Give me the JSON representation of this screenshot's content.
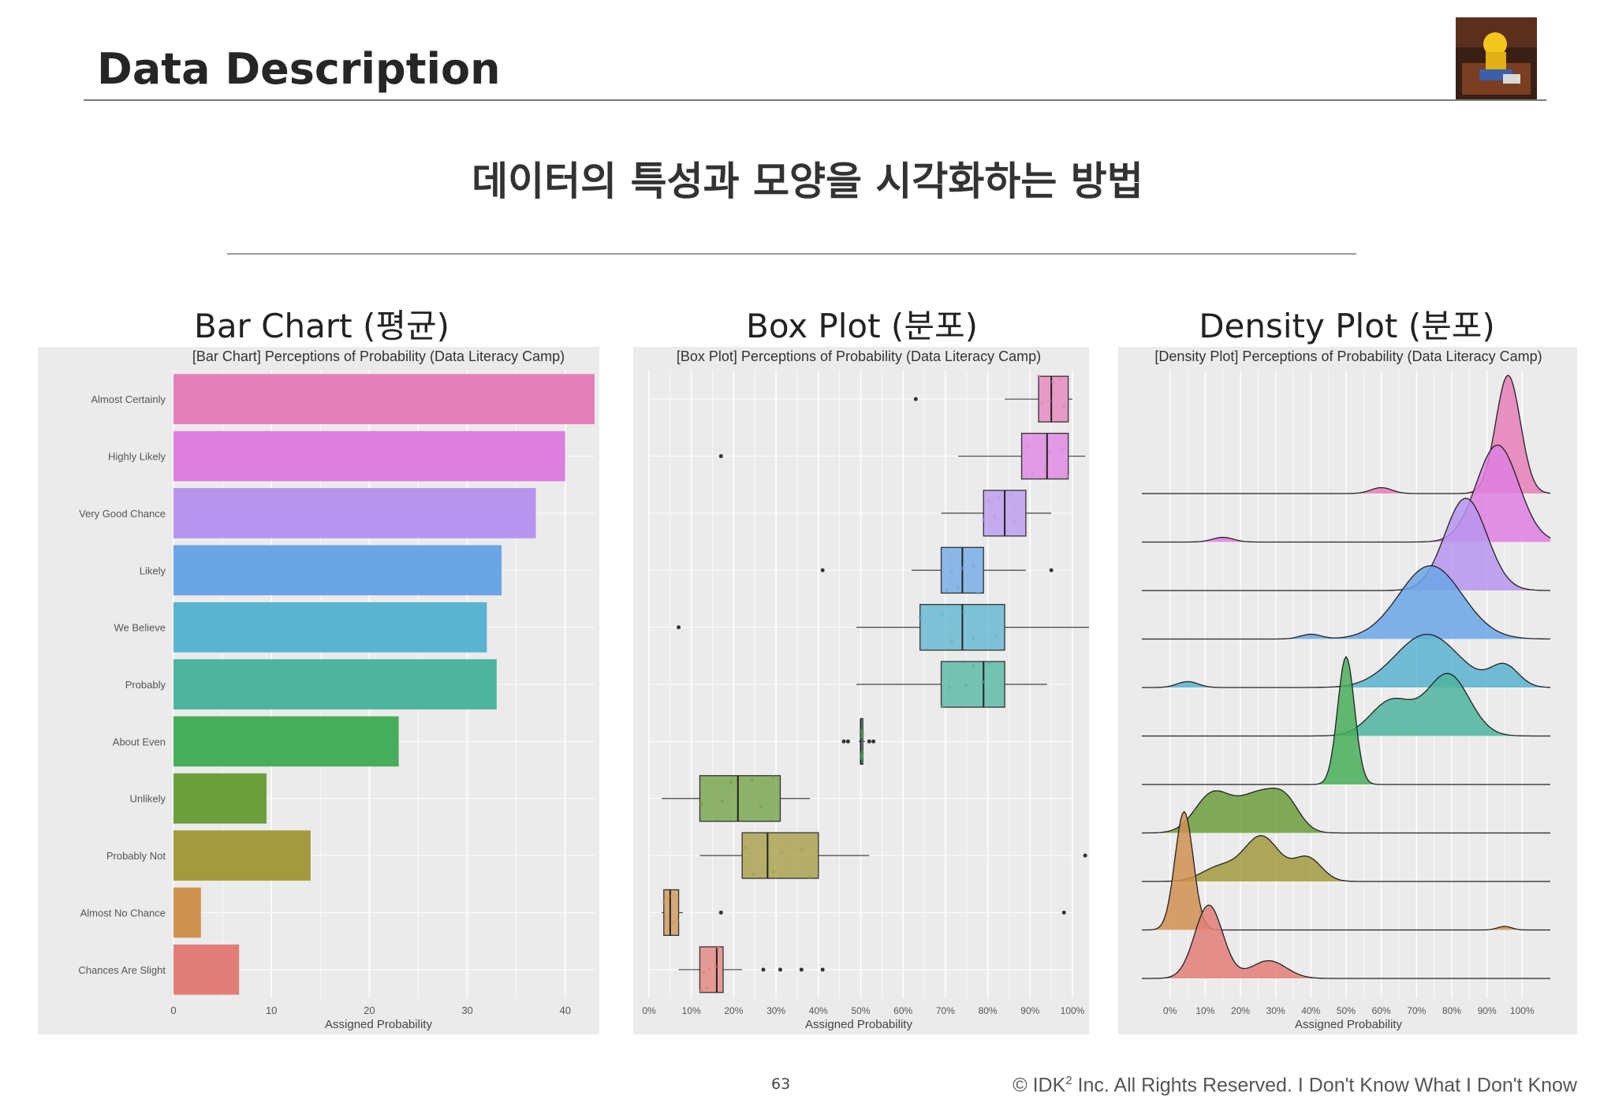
{
  "header": {
    "title": "Data Description"
  },
  "subtitle": "데이터의 특성과 모양을 시각화하는 방법",
  "panels": [
    {
      "label": "Bar Chart (평균)"
    },
    {
      "label": "Box Plot (분포)"
    },
    {
      "label": "Density Plot (분포)"
    }
  ],
  "footer": {
    "page": "63",
    "copyright_prefix": "© IDK",
    "copyright_sup": "2",
    "copyright_suffix": " Inc. All Rights Reserved.  I Don't Know What I Don't Know"
  },
  "colors": {
    "categories": [
      "#e57fb8",
      "#de7fe0",
      "#b795ef",
      "#6aa6e6",
      "#5ab3cf",
      "#4eb49e",
      "#46ae5b",
      "#6c9e3c",
      "#a29a3e",
      "#cf9150",
      "#e27e78"
    ],
    "panel_bg": "#ebebeb"
  },
  "chart_data": [
    {
      "type": "bar",
      "orientation": "horizontal",
      "title": "[Bar Chart] Perceptions of Probability (Data Literacy Camp)",
      "xlabel": "Assigned Probability",
      "ylabel": "",
      "xlim": [
        0,
        43
      ],
      "xticks": [
        "0",
        "10",
        "20",
        "30",
        "40"
      ],
      "categories": [
        "Almost Certainly",
        "Highly Likely",
        "Very Good Chance",
        "Likely",
        "We Believe",
        "Probably",
        "About Even",
        "Unlikely",
        "Probably Not",
        "Almost No Chance",
        "Chances Are Slight"
      ],
      "values": [
        43,
        40,
        37,
        33.5,
        32,
        33,
        23,
        9.5,
        14,
        2.8,
        6.7
      ]
    },
    {
      "type": "box",
      "title": "[Box Plot] Perceptions of Probability (Data Literacy Camp)",
      "xlabel": "Assigned Probability",
      "xlim": [
        0,
        100
      ],
      "xticks": [
        "0%",
        "10%",
        "20%",
        "30%",
        "40%",
        "50%",
        "60%",
        "70%",
        "80%",
        "90%",
        "100%"
      ],
      "categories": [
        "Almost Certainly",
        "Highly Likely",
        "Very Good Chance",
        "Likely",
        "We Believe",
        "Probably",
        "About Even",
        "Unlikely",
        "Probably Not",
        "Almost No Chance",
        "Chances Are Slight"
      ],
      "boxes": [
        {
          "min": 84,
          "q1": 92,
          "median": 95,
          "q3": 99,
          "max": 100,
          "outliers": [
            63
          ]
        },
        {
          "min": 73,
          "q1": 88,
          "median": 94,
          "q3": 99,
          "max": 103,
          "outliers": [
            17
          ]
        },
        {
          "min": 69,
          "q1": 79,
          "median": 84,
          "q3": 89,
          "max": 95,
          "outliers": []
        },
        {
          "min": 62,
          "q1": 69,
          "median": 74,
          "q3": 79,
          "max": 89,
          "outliers": [
            41,
            95
          ]
        },
        {
          "min": 49,
          "q1": 64,
          "median": 74,
          "q3": 84,
          "max": 104,
          "outliers": [
            7
          ]
        },
        {
          "min": 49,
          "q1": 69,
          "median": 79,
          "q3": 84,
          "max": 94,
          "outliers": []
        },
        {
          "min": 49.5,
          "q1": 50,
          "median": 50,
          "q3": 50.5,
          "max": 51,
          "outliers": [
            46,
            47,
            52,
            53
          ]
        },
        {
          "min": 3,
          "q1": 12,
          "median": 21,
          "q3": 31,
          "max": 38,
          "outliers": []
        },
        {
          "min": 12,
          "q1": 22,
          "median": 28,
          "q3": 40,
          "max": 52,
          "outliers": [
            103
          ]
        },
        {
          "min": 3,
          "q1": 3.5,
          "median": 5,
          "q3": 7,
          "max": 8,
          "outliers": [
            17,
            98
          ]
        },
        {
          "min": 7,
          "q1": 12,
          "median": 16,
          "q3": 17.5,
          "max": 22,
          "outliers": [
            27,
            31,
            36,
            41
          ]
        }
      ]
    },
    {
      "type": "density",
      "title": "[Density Plot] Perceptions of Probability (Data Literacy Camp)",
      "xlabel": "Assigned Probability",
      "xlim": [
        0,
        100
      ],
      "xticks": [
        "0%",
        "10%",
        "20%",
        "30%",
        "40%",
        "50%",
        "60%",
        "70%",
        "80%",
        "90%",
        "100%"
      ],
      "categories": [
        "Almost Certainly",
        "Highly Likely",
        "Very Good Chance",
        "Likely",
        "We Believe",
        "Probably",
        "About Even",
        "Unlikely",
        "Probably Not",
        "Almost No Chance",
        "Chances Are Slight"
      ],
      "peaks": [
        [
          {
            "mu": 96,
            "sd": 3.5,
            "h": 1.0
          },
          {
            "mu": 60,
            "sd": 3,
            "h": 0.05
          }
        ],
        [
          {
            "mu": 93,
            "sd": 6,
            "h": 0.82
          },
          {
            "mu": 15,
            "sd": 3,
            "h": 0.04
          }
        ],
        [
          {
            "mu": 84,
            "sd": 6,
            "h": 0.78
          }
        ],
        [
          {
            "mu": 74,
            "sd": 9,
            "h": 0.62
          },
          {
            "mu": 40,
            "sd": 3,
            "h": 0.04
          }
        ],
        [
          {
            "mu": 73,
            "sd": 9,
            "h": 0.45
          },
          {
            "mu": 95,
            "sd": 4,
            "h": 0.18
          },
          {
            "mu": 5,
            "sd": 3,
            "h": 0.05
          }
        ],
        [
          {
            "mu": 79,
            "sd": 6,
            "h": 0.52
          },
          {
            "mu": 63,
            "sd": 6,
            "h": 0.3
          }
        ],
        [
          {
            "mu": 50,
            "sd": 2.4,
            "h": 1.08
          }
        ],
        [
          {
            "mu": 12,
            "sd": 5,
            "h": 0.32
          },
          {
            "mu": 25,
            "sd": 6,
            "h": 0.32
          },
          {
            "mu": 33,
            "sd": 4,
            "h": 0.2
          }
        ],
        [
          {
            "mu": 26,
            "sd": 5,
            "h": 0.38
          },
          {
            "mu": 39,
            "sd": 4,
            "h": 0.2
          },
          {
            "mu": 14,
            "sd": 5,
            "h": 0.12
          }
        ],
        [
          {
            "mu": 4,
            "sd": 2.6,
            "h": 1.0
          },
          {
            "mu": 95,
            "sd": 2,
            "h": 0.03
          }
        ],
        [
          {
            "mu": 11,
            "sd": 4,
            "h": 0.62
          },
          {
            "mu": 28,
            "sd": 5,
            "h": 0.15
          }
        ]
      ]
    }
  ]
}
